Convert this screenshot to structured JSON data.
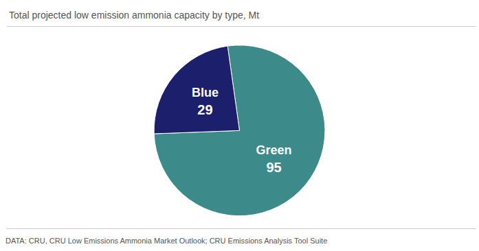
{
  "chart_data": {
    "type": "pie",
    "title": "Total projected low emission ammonia capacity by type, Mt",
    "annotations": [
      "DATA: CRU, CRU Low Emissions Ammonia Market Outlook; CRU Emissions Analysis Tool Suite"
    ],
    "categories": [
      "Green",
      "Blue"
    ],
    "values": [
      95,
      29
    ],
    "colors": [
      "#3d8a8a",
      "#1c1f6b"
    ],
    "data_labels": true
  }
}
